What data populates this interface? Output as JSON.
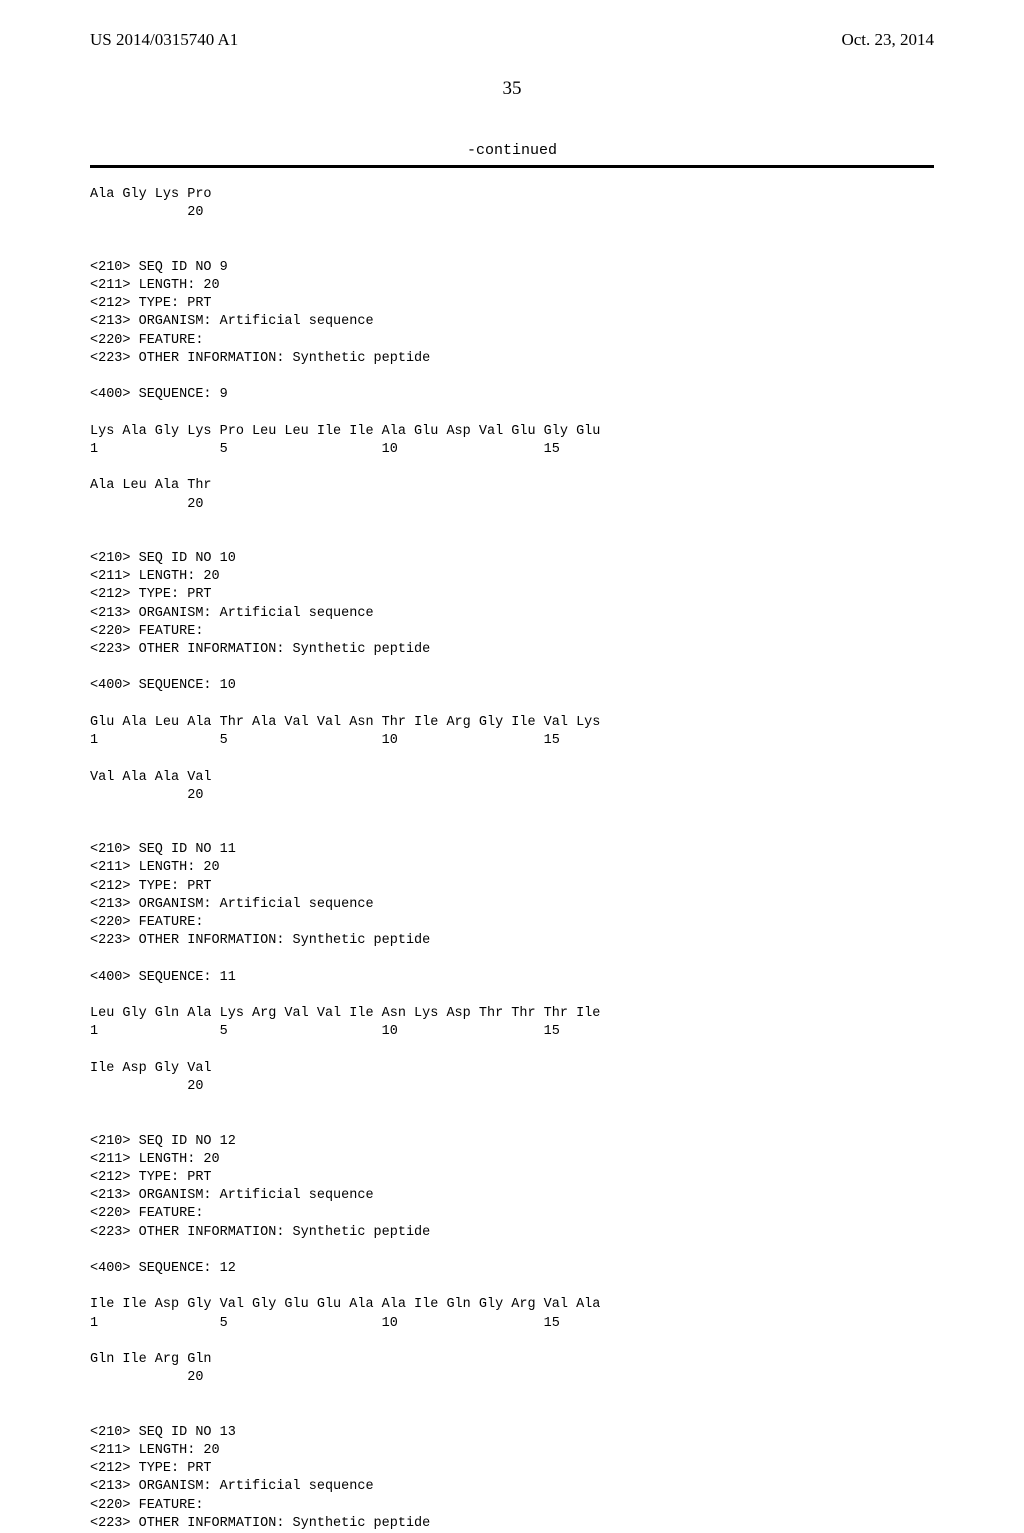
{
  "header": {
    "pub_number": "US 2014/0315740 A1",
    "pub_date": "Oct. 23, 2014"
  },
  "page_number": "35",
  "continued_label": "-continued",
  "blocks": [
    {
      "lines": [
        "Ala Gly Lys Pro",
        "            20"
      ]
    },
    {
      "lines": [
        "",
        "<210> SEQ ID NO 9",
        "<211> LENGTH: 20",
        "<212> TYPE: PRT",
        "<213> ORGANISM: Artificial sequence",
        "<220> FEATURE:",
        "<223> OTHER INFORMATION: Synthetic peptide",
        "",
        "<400> SEQUENCE: 9",
        "",
        "Lys Ala Gly Lys Pro Leu Leu Ile Ile Ala Glu Asp Val Glu Gly Glu",
        "1               5                   10                  15",
        "",
        "Ala Leu Ala Thr",
        "            20"
      ]
    },
    {
      "lines": [
        "",
        "<210> SEQ ID NO 10",
        "<211> LENGTH: 20",
        "<212> TYPE: PRT",
        "<213> ORGANISM: Artificial sequence",
        "<220> FEATURE:",
        "<223> OTHER INFORMATION: Synthetic peptide",
        "",
        "<400> SEQUENCE: 10",
        "",
        "Glu Ala Leu Ala Thr Ala Val Val Asn Thr Ile Arg Gly Ile Val Lys",
        "1               5                   10                  15",
        "",
        "Val Ala Ala Val",
        "            20"
      ]
    },
    {
      "lines": [
        "",
        "<210> SEQ ID NO 11",
        "<211> LENGTH: 20",
        "<212> TYPE: PRT",
        "<213> ORGANISM: Artificial sequence",
        "<220> FEATURE:",
        "<223> OTHER INFORMATION: Synthetic peptide",
        "",
        "<400> SEQUENCE: 11",
        "",
        "Leu Gly Gln Ala Lys Arg Val Val Ile Asn Lys Asp Thr Thr Thr Ile",
        "1               5                   10                  15",
        "",
        "Ile Asp Gly Val",
        "            20"
      ]
    },
    {
      "lines": [
        "",
        "<210> SEQ ID NO 12",
        "<211> LENGTH: 20",
        "<212> TYPE: PRT",
        "<213> ORGANISM: Artificial sequence",
        "<220> FEATURE:",
        "<223> OTHER INFORMATION: Synthetic peptide",
        "",
        "<400> SEQUENCE: 12",
        "",
        "Ile Ile Asp Gly Val Gly Glu Glu Ala Ala Ile Gln Gly Arg Val Ala",
        "1               5                   10                  15",
        "",
        "Gln Ile Arg Gln",
        "            20"
      ]
    },
    {
      "lines": [
        "",
        "<210> SEQ ID NO 13",
        "<211> LENGTH: 20",
        "<212> TYPE: PRT",
        "<213> ORGANISM: Artificial sequence",
        "<220> FEATURE:",
        "<223> OTHER INFORMATION: Synthetic peptide"
      ]
    }
  ]
}
